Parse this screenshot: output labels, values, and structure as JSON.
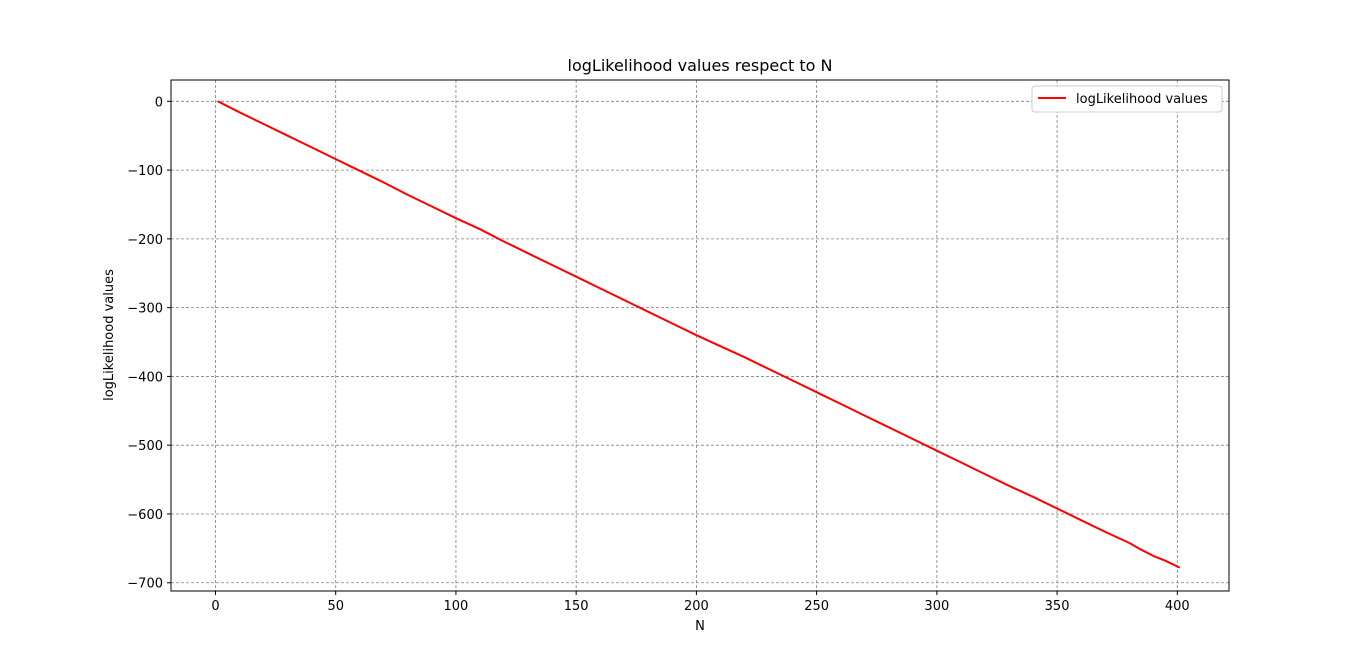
{
  "chart_data": {
    "type": "line",
    "title": "logLikelihood values respect to N",
    "xlabel": "N",
    "ylabel": "logLikelihood values",
    "xlim": [
      -18.5,
      421.5
    ],
    "ylim": [
      -712,
      31
    ],
    "xticks": [
      0,
      50,
      100,
      150,
      200,
      250,
      300,
      350,
      400
    ],
    "yticks": [
      0,
      -100,
      -200,
      -300,
      -400,
      -500,
      -600,
      -700
    ],
    "xtick_labels": [
      "0",
      "50",
      "100",
      "150",
      "200",
      "250",
      "300",
      "350",
      "400"
    ],
    "ytick_labels": [
      "0",
      "−100",
      "−200",
      "−300",
      "−400",
      "−500",
      "−600",
      "−700"
    ],
    "grid": true,
    "legend_position": "top-right",
    "series": [
      {
        "name": "logLikelihood values",
        "color": "#ff0000",
        "x": [
          1,
          10,
          20,
          30,
          40,
          50,
          60,
          70,
          80,
          90,
          100,
          110,
          120,
          130,
          140,
          150,
          160,
          170,
          180,
          190,
          200,
          210,
          220,
          230,
          240,
          250,
          260,
          270,
          280,
          290,
          300,
          310,
          320,
          330,
          340,
          350,
          360,
          370,
          380,
          385,
          390,
          395,
          401
        ],
        "y": [
          0,
          -16,
          -33,
          -50,
          -67,
          -84,
          -101,
          -118,
          -136,
          -153,
          -170,
          -186,
          -204,
          -221,
          -238,
          -255,
          -272,
          -289,
          -306,
          -323,
          -340,
          -356,
          -372,
          -389,
          -406,
          -423,
          -440,
          -457,
          -474,
          -491,
          -508,
          -525,
          -542,
          -559,
          -575,
          -592,
          -609,
          -626,
          -642,
          -652,
          -661,
          -668,
          -678
        ]
      }
    ]
  }
}
